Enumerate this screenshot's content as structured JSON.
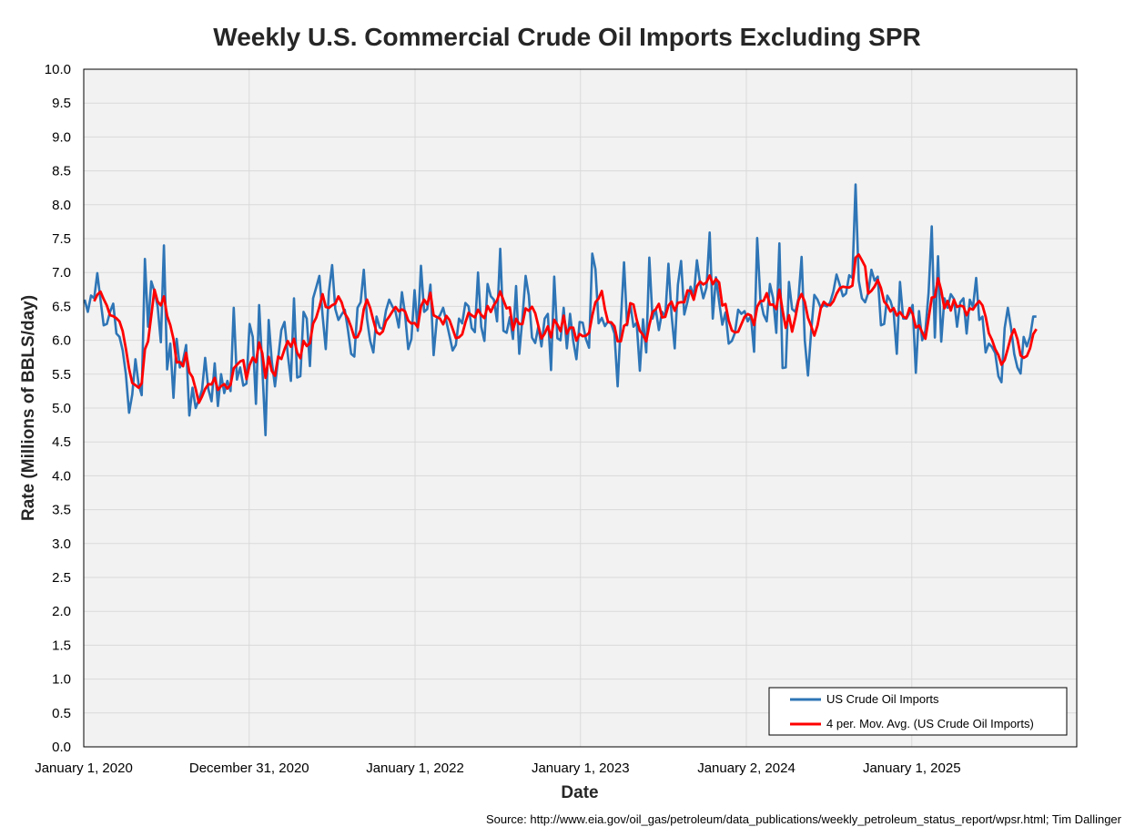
{
  "chart_data": {
    "type": "line",
    "title": "Weekly U.S. Commercial Crude Oil Imports Excluding SPR",
    "xlabel": "Date",
    "ylabel": "Rate (Millions of BBLS/day)",
    "source": "Source: http://www.eia.gov/oil_gas/petroleum/data_publications/weekly_petroleum_status_report/wpsr.html; Tim Dallinger",
    "xlim": [
      "2020-01-01",
      "2025-12-31"
    ],
    "ylim": [
      0,
      10
    ],
    "ytick_step": 0.5,
    "yticks": [
      "0.0",
      "0.5",
      "1.0",
      "1.5",
      "2.0",
      "2.5",
      "3.0",
      "3.5",
      "4.0",
      "4.5",
      "5.0",
      "5.5",
      "6.0",
      "6.5",
      "7.0",
      "7.5",
      "8.0",
      "8.5",
      "9.0",
      "9.5",
      "10.0"
    ],
    "xticks": [
      {
        "date": "2020-01-01",
        "label": "January 1, 2020"
      },
      {
        "date": "2020-12-31",
        "label": "December 31, 2020"
      },
      {
        "date": "2022-01-01",
        "label": "January 1, 2022"
      },
      {
        "date": "2023-01-01",
        "label": "January 1, 2023"
      },
      {
        "date": "2024-01-02",
        "label": "January 2, 2024"
      },
      {
        "date": "2025-01-01",
        "label": "January 1, 2025"
      }
    ],
    "grid": true,
    "legend_position": "bottom-right",
    "series": [
      {
        "name": "US Crude Oil Imports",
        "color": "#2e75b6",
        "start_date": "2020-01-03",
        "interval_days": 7,
        "values": [
          6.6,
          6.42,
          6.66,
          6.62,
          6.99,
          6.6,
          6.22,
          6.24,
          6.42,
          6.54,
          6.1,
          6.05,
          5.85,
          5.5,
          4.93,
          5.2,
          5.72,
          5.35,
          5.19,
          7.2,
          6.2,
          6.87,
          6.72,
          6.5,
          5.97,
          7.4,
          5.57,
          5.95,
          5.15,
          6.02,
          5.6,
          5.7,
          5.93,
          4.89,
          5.3,
          5.0,
          5.12,
          5.27,
          5.74,
          5.28,
          5.1,
          5.66,
          5.03,
          5.5,
          5.22,
          5.4,
          5.25,
          6.48,
          5.42,
          5.6,
          5.33,
          5.36,
          6.24,
          6.05,
          5.06,
          6.52,
          5.6,
          4.6,
          6.3,
          5.69,
          5.32,
          5.73,
          6.15,
          6.27,
          5.8,
          5.4,
          6.62,
          5.45,
          5.47,
          6.42,
          6.32,
          5.62,
          6.62,
          6.78,
          6.95,
          6.37,
          5.87,
          6.72,
          7.11,
          6.46,
          6.3,
          6.38,
          6.45,
          6.15,
          5.8,
          5.76,
          6.48,
          6.56,
          7.04,
          6.32,
          5.99,
          5.82,
          6.35,
          6.19,
          6.16,
          6.44,
          6.6,
          6.5,
          6.42,
          6.19,
          6.71,
          6.39,
          5.87,
          6.02,
          6.74,
          6.14,
          7.1,
          6.42,
          6.46,
          6.82,
          5.78,
          6.31,
          6.37,
          6.48,
          6.28,
          6.07,
          5.85,
          5.93,
          6.32,
          6.25,
          6.55,
          6.5,
          6.18,
          6.12,
          7.0,
          6.2,
          5.99,
          6.83,
          6.65,
          6.6,
          6.28,
          7.35,
          6.14,
          6.11,
          6.34,
          6.02,
          6.8,
          5.8,
          6.33,
          6.95,
          6.66,
          6.04,
          5.96,
          6.2,
          5.91,
          6.32,
          6.39,
          5.56,
          6.94,
          6.03,
          6.0,
          6.48,
          5.88,
          6.39,
          5.99,
          5.72,
          6.27,
          6.26,
          6.02,
          5.89,
          7.28,
          7.05,
          6.25,
          6.33,
          6.21,
          6.28,
          6.24,
          6.1,
          5.32,
          6.28,
          7.15,
          6.22,
          6.54,
          6.2,
          6.26,
          5.55,
          6.31,
          5.82,
          7.22,
          6.32,
          6.46,
          6.15,
          6.42,
          6.35,
          7.13,
          6.38,
          5.88,
          6.82,
          7.17,
          6.38,
          6.57,
          6.79,
          6.65,
          7.18,
          6.84,
          6.62,
          6.78,
          7.59,
          6.32,
          6.93,
          6.57,
          6.23,
          6.41,
          5.95,
          5.99,
          6.11,
          6.45,
          6.39,
          6.43,
          6.28,
          6.36,
          5.83,
          7.51,
          6.61,
          6.38,
          6.28,
          6.83,
          6.62,
          6.11,
          7.43,
          5.59,
          5.6,
          6.86,
          6.46,
          6.42,
          6.62,
          7.23,
          6.0,
          5.48,
          6.13,
          6.67,
          6.6,
          6.48,
          6.52,
          6.5,
          6.56,
          6.72,
          6.97,
          6.82,
          6.65,
          6.69,
          6.96,
          6.92,
          8.3,
          6.88,
          6.62,
          6.56,
          6.7,
          7.04,
          6.88,
          6.94,
          6.22,
          6.24,
          6.66,
          6.58,
          6.42,
          5.8,
          6.86,
          6.32,
          6.32,
          6.4,
          6.52,
          5.52,
          6.43,
          6.0,
          6.14,
          6.7,
          7.68,
          6.04,
          7.24,
          5.98,
          6.62,
          6.48,
          6.68,
          6.61,
          6.2,
          6.56,
          6.62,
          6.1,
          6.6,
          6.49,
          6.92,
          6.3,
          6.35,
          5.82,
          5.95,
          5.9,
          5.81,
          5.47,
          5.38,
          6.18,
          6.48,
          6.19,
          5.8,
          5.6,
          5.51,
          6.05,
          5.91,
          6.05,
          6.35,
          6.35
        ]
      },
      {
        "name": "4 per. Mov. Avg. (US Crude Oil Imports)",
        "color": "#ff0000",
        "moving_average_window": 4
      }
    ]
  }
}
